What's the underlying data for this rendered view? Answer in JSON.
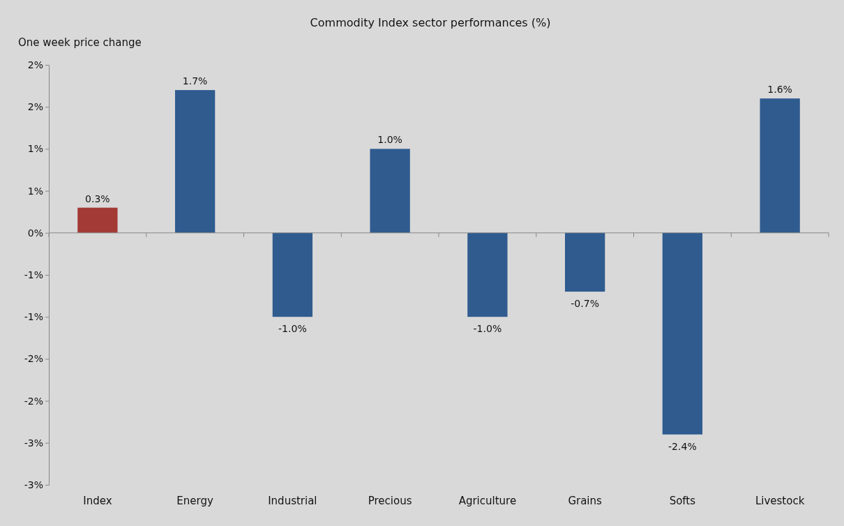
{
  "chart_data": {
    "type": "bar",
    "title": "Commodity Index sector performances (%)",
    "ylabel": "One week price change",
    "categories": [
      "Index",
      "Energy",
      "Industrial",
      "Precious",
      "Agriculture",
      "Grains",
      "Softs",
      "Livestock"
    ],
    "values": [
      0.3,
      1.7,
      -1.0,
      1.0,
      -1.0,
      -0.7,
      -2.4,
      1.6
    ],
    "colors": [
      "#a33a36",
      "#2f5b8f",
      "#2f5b8f",
      "#2f5b8f",
      "#2f5b8f",
      "#2f5b8f",
      "#2f5b8f",
      "#2f5b8f"
    ],
    "value_labels": [
      "0.3%",
      "1.7%",
      "-1.0%",
      "1.0%",
      "-1.0%",
      "-0.7%",
      "-2.4%",
      "1.6%"
    ],
    "ylim": [
      -3,
      2
    ],
    "yticks": [
      {
        "value": 2,
        "label": "2%"
      },
      {
        "value": 1.5,
        "label": "2%"
      },
      {
        "value": 1,
        "label": "1%"
      },
      {
        "value": 0.5,
        "label": "1%"
      },
      {
        "value": 0,
        "label": "0%"
      },
      {
        "value": -0.5,
        "label": "-1%"
      },
      {
        "value": -1,
        "label": "-1%"
      },
      {
        "value": -1.5,
        "label": "-2%"
      },
      {
        "value": -2,
        "label": "-2%"
      },
      {
        "value": -2.5,
        "label": "-3%"
      },
      {
        "value": -3,
        "label": "-3%"
      }
    ],
    "stacked": false
  }
}
